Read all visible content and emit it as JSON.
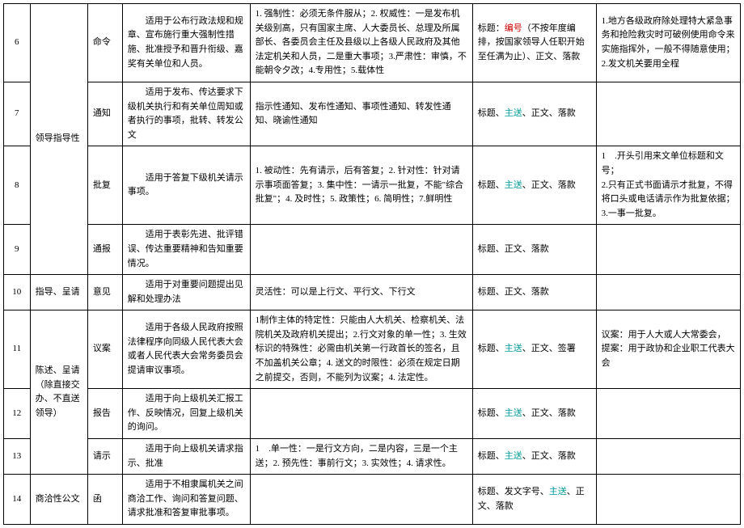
{
  "colors": {
    "border": "#000000",
    "background": "#ffffff",
    "text": "#000000",
    "red": "#cc0000",
    "teal": "#009999"
  },
  "rows": [
    {
      "num": "6",
      "category": "",
      "type": "命令",
      "scope": "适用于公布行政法规和规章、宣布施行重大强制性措施、批准授予和晋升衔级、嘉奖有关单位和人员。",
      "features": "1. 强制性：必须无条件服从；2. 权威性：一是发布机关级别高，只有国家主席、人大委员长、总理及所属部长、各委员会主任及县级以上各级人民政府及其他法定机关和人员，二是重大事项；3.严肃性：审慎，不能朝令夕改；4.专用性；5.载体性",
      "format_prefix": "标题：",
      "format_red": "编号",
      "format_suffix": "（不按年度编排，按国家领导人任职开始至任满为止）、正文、落款",
      "notes": "1.地方各级政府除处理特大紧急事务和抢险救灾时可破例使用命令来实施指挥外，一般不得随意使用；\n2.发文机关要用全程"
    },
    {
      "num": "7",
      "category": "领导指导性",
      "type": "通知",
      "scope": "适用于发布、传达要求下级机关执行和有关单位周知或者执行的事项，批转、转发公文",
      "features": "指示性通知、发布性通知、事项性通知、转发性通知、晓谕性通知",
      "format_prefix": "标题、",
      "format_teal": "主送",
      "format_suffix": "、正文、落款",
      "notes": ""
    },
    {
      "num": "8",
      "category": "",
      "type": "批复",
      "scope": "适用于答复下级机关请示事项。",
      "features": "1. 被动性：先有请示，后有答复；2. 针对性：针对请示事项面答复；3. 集中性：一请示一批复，不能\"综合批复\"；4. 及时性；5. 政策性；6. 简明性；7.鲜明性",
      "format_prefix": "标题、",
      "format_teal": "主送",
      "format_suffix": "、正文、落款",
      "notes": "1　.开头引用来文单位标题和文号；\n2.只有正式书面请示才批复，不得将口头或电话请示作为批复依据；\n3.一事一批复。"
    },
    {
      "num": "9",
      "category": "",
      "type": "通报",
      "scope": "适用于表彰先进、批评错误、传达重要精神和告知重要情况。",
      "features": "",
      "format_prefix": "标题、正文、落款",
      "format_teal": "",
      "format_suffix": "",
      "notes": ""
    },
    {
      "num": "10",
      "category": "指导、呈请",
      "type": "意见",
      "scope": "适用于对重要问题提出见解和处理办法",
      "features": "灵活性：可以是上行文、平行文、下行文",
      "format_prefix": "标题、正文、落款",
      "format_teal": "",
      "format_suffix": "",
      "notes": ""
    },
    {
      "num": "11",
      "category": "陈述、呈请（除直接交办、不直送领导）",
      "type": "议案",
      "scope": "适用于各级人民政府按照法律程序向同级人民代表大会或者人民代表大会常务委员会提请审议事项。",
      "features": "1制作主体的特定性：只能由人大机关、检察机关、法院机关及政府机关提出；2.行文对象的单一性；3. 生效标识的特殊性：必需由机关第一行政首长的签名，且不加盖机关公章；4. 送文的时限性：必须在规定日期之前提交，否则，不能列为议案；4. 法定性。",
      "format_prefix": "标题、",
      "format_teal": "主送",
      "format_suffix": "、正文、签署",
      "notes": "议案：用于人大或人大常委会，\n提案：用于政协和企业职工代表大会"
    },
    {
      "num": "12",
      "category": "",
      "type": "报告",
      "scope": "适用于向上级机关汇报工作、反映情况，回复上级机关的询问。",
      "features": "",
      "format_prefix": "标题、",
      "format_teal": "主送",
      "format_suffix": "、正文、落款",
      "notes": ""
    },
    {
      "num": "13",
      "category": "",
      "type": "请示",
      "scope": "适用于向上级机关请求指示、批准",
      "features": "1　.单一性：一是行文方向，二是内容，三是一个主送；2. 预先性：事前行文；3. 实效性；4. 请求性。",
      "format_prefix": "标题、",
      "format_teal": "主送",
      "format_suffix": "、正文、落款",
      "notes": ""
    },
    {
      "num": "14",
      "category": "商洽性公文",
      "type": "函",
      "scope": "适用于不相隶属机关之间商洽工作、询问和答复问题、请求批准和答复审批事项。",
      "features": "",
      "format_prefix": "标题、发文字号、",
      "format_teal": "主送",
      "format_suffix": "、正文、落款",
      "notes": ""
    }
  ]
}
